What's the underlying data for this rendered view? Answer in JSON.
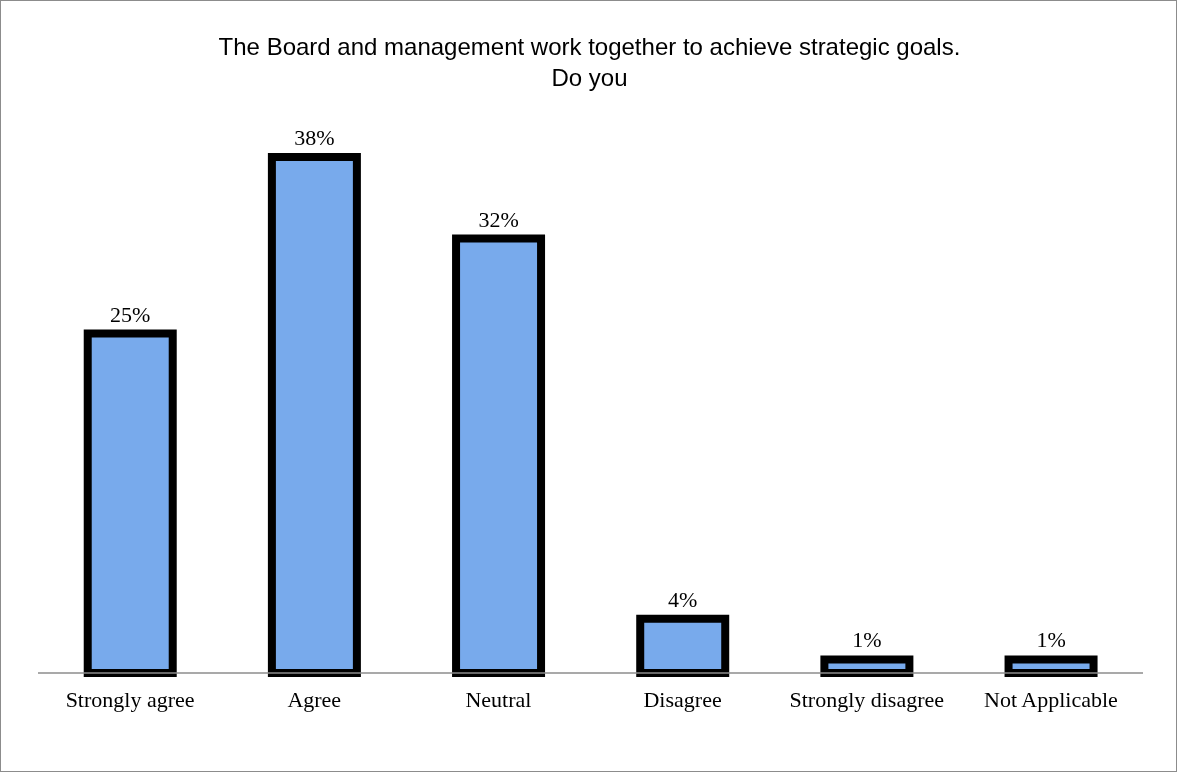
{
  "chart_data": {
    "type": "bar",
    "title": "The Board and management work together to achieve strategic goals.\nDo you",
    "categories": [
      "Strongly agree",
      "Agree",
      "Neutral",
      "Disagree",
      "Strongly disagree",
      "Not Applicable"
    ],
    "values": [
      25,
      38,
      32,
      4,
      1,
      1
    ],
    "value_labels": [
      "25%",
      "38%",
      "32%",
      "4%",
      "1%",
      "1%"
    ],
    "color": "#78aaec",
    "grid": false,
    "legend": false
  }
}
